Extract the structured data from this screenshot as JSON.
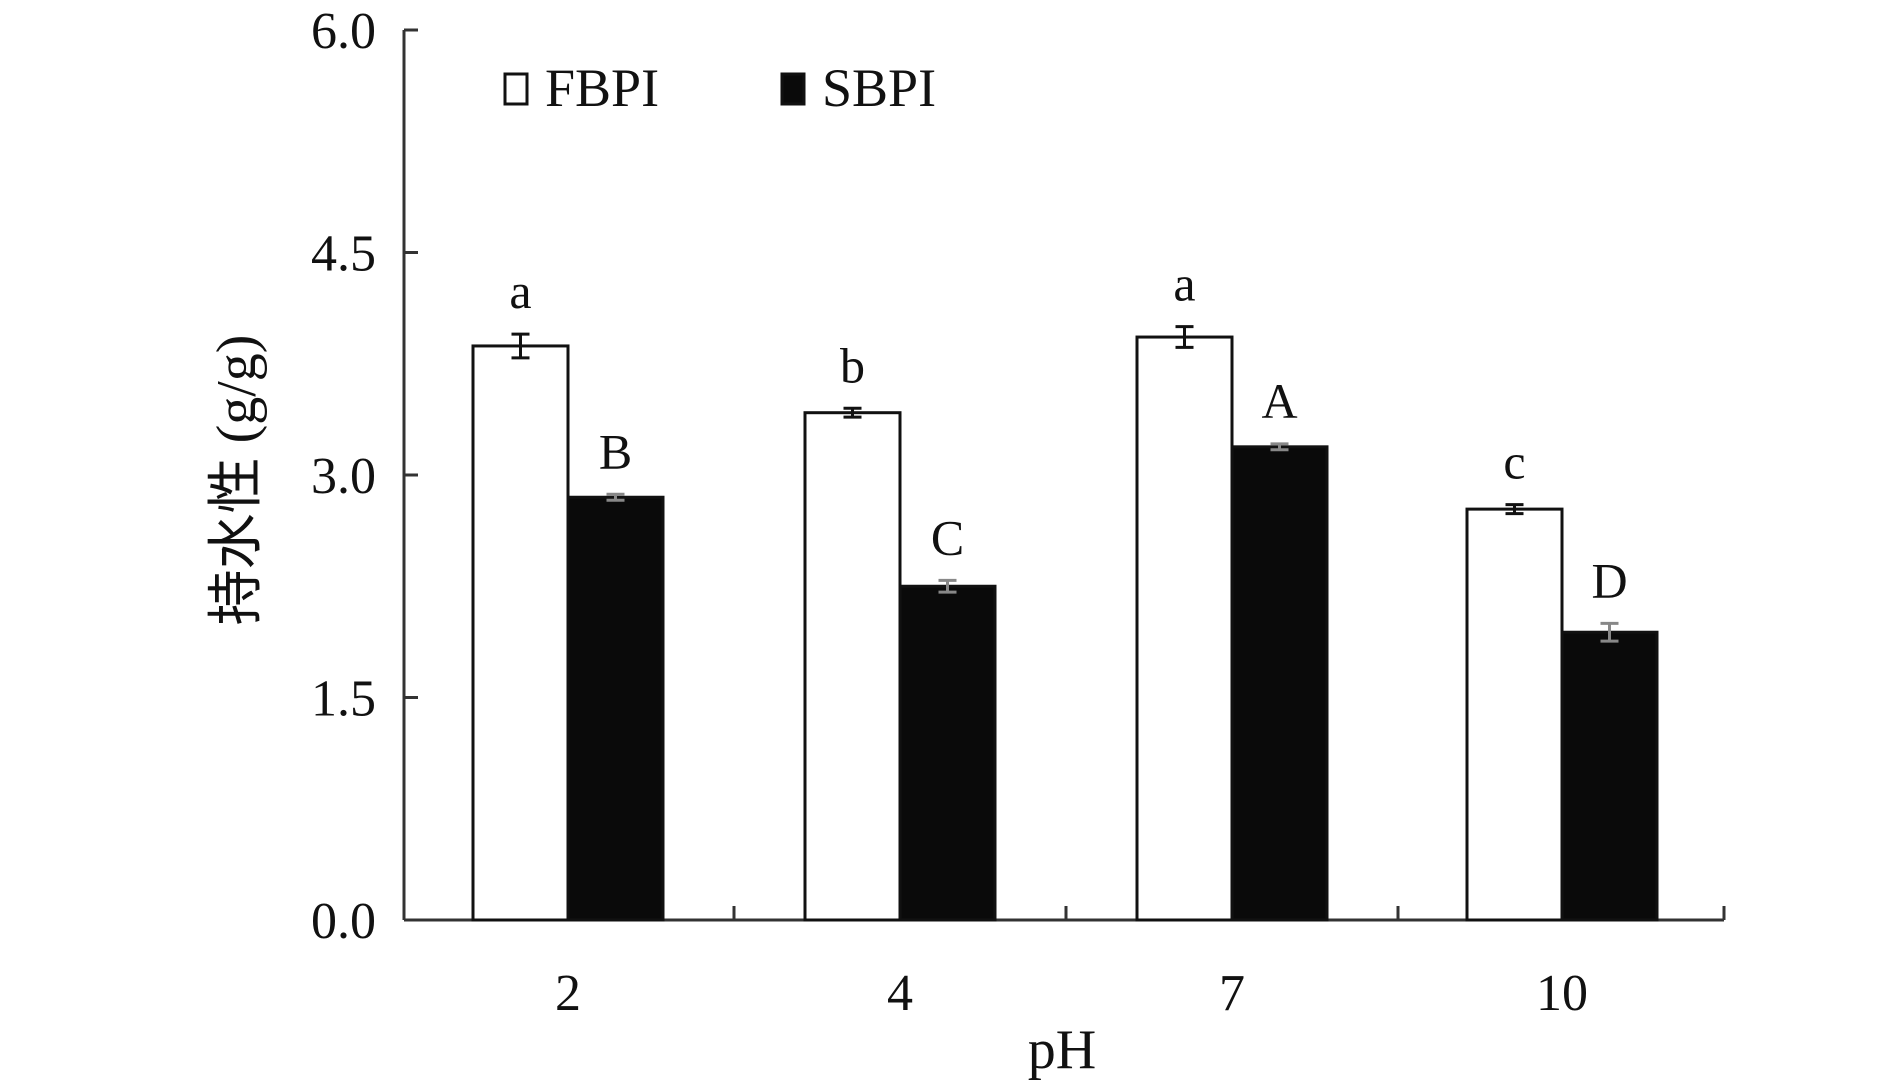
{
  "chart_data": {
    "type": "bar",
    "title": "",
    "xlabel": "pH",
    "ylabel": "持水性 (g/g)",
    "categories": [
      "2",
      "4",
      "7",
      "10"
    ],
    "ylim": [
      0,
      6.0
    ],
    "yticks": [
      "0.0",
      "1.5",
      "3.0",
      "4.5",
      "6.0"
    ],
    "ytick_values": [
      0,
      1.5,
      3.0,
      4.5,
      6.0
    ],
    "grid": false,
    "legend_position": "top-left",
    "series": [
      {
        "name": "FBPI",
        "color": "#ffffff",
        "stroke": "#111111",
        "values": [
          3.87,
          3.42,
          3.93,
          2.77
        ],
        "errors": [
          0.08,
          0.03,
          0.07,
          0.03
        ],
        "labels": [
          "a",
          "b",
          "a",
          "c"
        ]
      },
      {
        "name": "SBPI",
        "color": "#0a0a0a",
        "stroke": "#111111",
        "values": [
          2.85,
          2.25,
          3.19,
          1.94
        ],
        "errors": [
          0.02,
          0.04,
          0.02,
          0.06
        ],
        "labels": [
          "B",
          "C",
          "A",
          "D"
        ]
      }
    ]
  }
}
